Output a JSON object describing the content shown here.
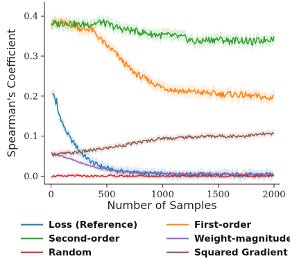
{
  "chart_data": {
    "type": "line",
    "xlabel": "Number of Samples",
    "ylabel": "Spearman's Coefficient",
    "xlim": [
      -60,
      2050
    ],
    "ylim": [
      -0.02,
      0.435
    ],
    "xticks": [
      0,
      500,
      1000,
      1500,
      2000
    ],
    "yticks": [
      0.0,
      0.1,
      0.2,
      0.3,
      0.4
    ],
    "xtick_labels": [
      "0",
      "500",
      "1000",
      "1500",
      "2000"
    ],
    "ytick_labels": [
      "0.0",
      "0.1",
      "0.2",
      "0.3",
      "0.4"
    ],
    "grid": false,
    "legend_position": "bottom",
    "shaded_band": true,
    "series": [
      {
        "name": "Loss (Reference)",
        "color": "#1f77b4",
        "x": [
          10,
          20,
          30,
          40,
          50,
          60,
          80,
          100,
          120,
          140,
          160,
          180,
          200,
          250,
          300,
          350,
          400,
          450,
          500,
          550,
          600,
          700,
          800,
          900,
          1000,
          1200,
          1400,
          1600,
          1800,
          2000
        ],
        "y": [
          0.21,
          0.2,
          0.205,
          0.18,
          0.19,
          0.16,
          0.15,
          0.135,
          0.12,
          0.11,
          0.1,
          0.09,
          0.085,
          0.065,
          0.05,
          0.038,
          0.03,
          0.025,
          0.02,
          0.016,
          0.013,
          0.01,
          0.008,
          0.006,
          0.005,
          0.004,
          0.004,
          0.003,
          0.003,
          0.003
        ]
      },
      {
        "name": "First-order",
        "color": "#ff7f0e",
        "x": [
          0,
          50,
          100,
          150,
          200,
          250,
          300,
          350,
          400,
          450,
          500,
          550,
          600,
          650,
          700,
          750,
          800,
          850,
          900,
          950,
          1000,
          1100,
          1200,
          1300,
          1400,
          1500,
          1600,
          1700,
          1800,
          1900,
          1950,
          2000
        ],
        "y": [
          0.385,
          0.38,
          0.385,
          0.375,
          0.38,
          0.37,
          0.365,
          0.37,
          0.355,
          0.34,
          0.325,
          0.315,
          0.3,
          0.285,
          0.27,
          0.258,
          0.25,
          0.242,
          0.235,
          0.228,
          0.222,
          0.215,
          0.212,
          0.21,
          0.208,
          0.205,
          0.205,
          0.203,
          0.2,
          0.198,
          0.192,
          0.203
        ]
      },
      {
        "name": "Second-order",
        "color": "#2ca02c",
        "x": [
          0,
          50,
          100,
          150,
          200,
          250,
          300,
          350,
          400,
          450,
          500,
          600,
          700,
          800,
          900,
          1000,
          1100,
          1200,
          1300,
          1400,
          1500,
          1600,
          1700,
          1800,
          1900,
          2000
        ],
        "y": [
          0.383,
          0.38,
          0.382,
          0.385,
          0.38,
          0.378,
          0.38,
          0.38,
          0.382,
          0.385,
          0.38,
          0.37,
          0.365,
          0.36,
          0.355,
          0.352,
          0.35,
          0.345,
          0.335,
          0.34,
          0.342,
          0.338,
          0.34,
          0.335,
          0.34,
          0.345
        ]
      },
      {
        "name": "Weight-magnitude",
        "color": "#9467bd",
        "x": [
          10,
          50,
          100,
          150,
          200,
          250,
          300,
          350,
          400,
          450,
          500,
          600,
          700,
          800,
          900,
          1000,
          1200,
          1400,
          1600,
          1800,
          2000
        ],
        "y": [
          0.055,
          0.054,
          0.05,
          0.045,
          0.04,
          0.035,
          0.03,
          0.026,
          0.022,
          0.019,
          0.016,
          0.013,
          0.011,
          0.009,
          0.008,
          0.007,
          0.006,
          0.006,
          0.005,
          0.005,
          0.005
        ]
      },
      {
        "name": "Random",
        "color": "#d62728",
        "x": [
          0,
          100,
          200,
          300,
          400,
          500,
          600,
          700,
          800,
          900,
          1000,
          1100,
          1200,
          1300,
          1400,
          1500,
          1600,
          1700,
          1800,
          1900,
          2000
        ],
        "y": [
          0.0,
          0.0,
          0.001,
          0.0,
          0.0,
          0.001,
          0.0,
          0.0,
          0.001,
          0.0,
          0.0,
          0.001,
          0.0,
          0.0,
          0.001,
          0.0,
          0.0,
          0.001,
          0.0,
          0.0,
          0.001
        ]
      },
      {
        "name": "Squared Gradient",
        "color": "#8c564b",
        "x": [
          0,
          100,
          200,
          300,
          400,
          500,
          600,
          700,
          800,
          900,
          1000,
          1100,
          1200,
          1300,
          1400,
          1500,
          1600,
          1700,
          1800,
          1900,
          2000
        ],
        "y": [
          0.055,
          0.056,
          0.058,
          0.062,
          0.066,
          0.07,
          0.075,
          0.08,
          0.085,
          0.09,
          0.095,
          0.095,
          0.097,
          0.098,
          0.1,
          0.1,
          0.1,
          0.1,
          0.102,
          0.105,
          0.105
        ]
      }
    ]
  }
}
